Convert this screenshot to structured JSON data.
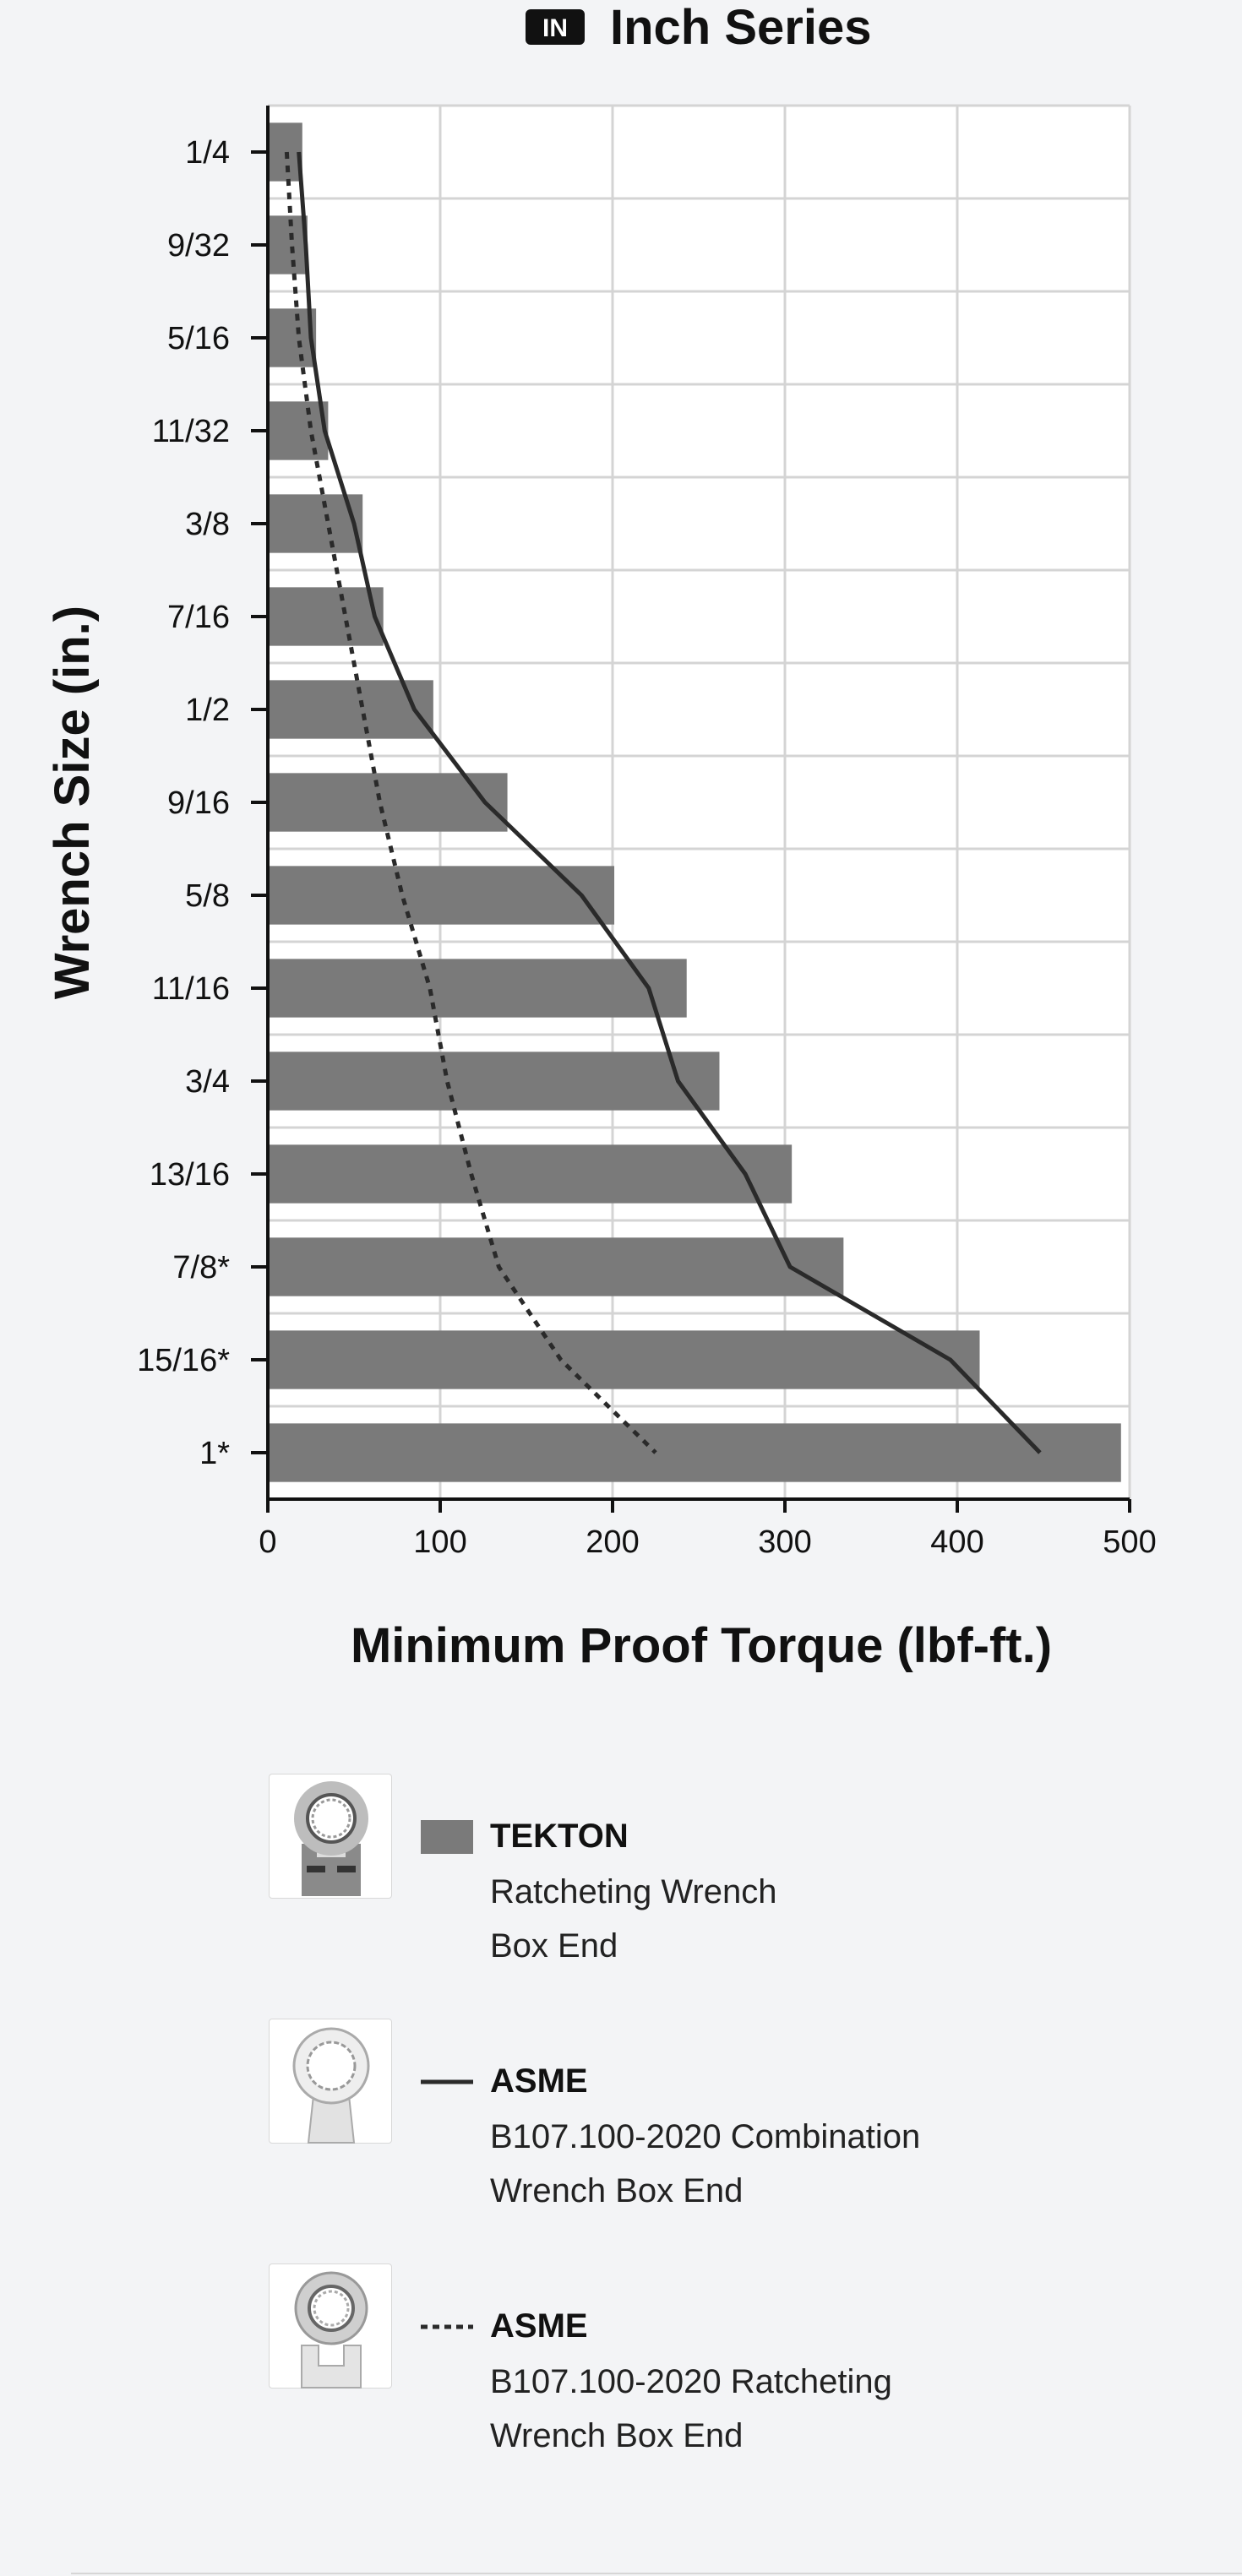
{
  "header": {
    "badge": "IN",
    "title": "Inch Series"
  },
  "chart_data": {
    "type": "bar",
    "orientation": "horizontal",
    "title": "Inch Series",
    "xlabel": "Minimum Proof Torque (lbf-ft.)",
    "ylabel": "Wrench Size (in.)",
    "xlim": [
      0,
      500
    ],
    "xticks": [
      0,
      100,
      200,
      300,
      400,
      500
    ],
    "grid": true,
    "categories": [
      "1/4",
      "9/32",
      "5/16",
      "11/32",
      "3/8",
      "7/16",
      "1/2",
      "9/16",
      "5/8",
      "11/16",
      "3/4",
      "13/16",
      "7/8*",
      "15/16*",
      "1*"
    ],
    "series": [
      {
        "name": "TEKTON",
        "type": "bar",
        "color": "#7a7a7a",
        "values": [
          20,
          23,
          28,
          35,
          55,
          67,
          96,
          139,
          201,
          243,
          262,
          304,
          334,
          413,
          495
        ]
      },
      {
        "name": "ASME B107.100-2020 Combination Wrench Box End",
        "type": "line",
        "style": "solid",
        "color": "#2a2a2a",
        "values": [
          18,
          22,
          25,
          33,
          50,
          62,
          85,
          126,
          182,
          221,
          238,
          277,
          303,
          396,
          448
        ]
      },
      {
        "name": "ASME B107.100-2020 Ratcheting Wrench Box End",
        "type": "line",
        "style": "dashed",
        "color": "#2a2a2a",
        "values": [
          11,
          14,
          18,
          25,
          35,
          45,
          55,
          65,
          78,
          94,
          104,
          118,
          134,
          170,
          225
        ]
      }
    ]
  },
  "legend": [
    {
      "name": "TEKTON",
      "line1": "Ratcheting Wrench",
      "line2": "Box End",
      "key": "bar",
      "thumb_icon": "tekton-ratcheting-wrench-icon"
    },
    {
      "name": "ASME",
      "line1": "B107.100-2020 Combination",
      "line2": "Wrench Box End",
      "key": "solid-line",
      "thumb_icon": "combination-wrench-icon"
    },
    {
      "name": "ASME",
      "line1": "B107.100-2020 Ratcheting",
      "line2": "Wrench Box End",
      "key": "dashed-line",
      "thumb_icon": "ratcheting-wrench-icon"
    }
  ],
  "colors": {
    "bar": "#7a7a7a",
    "line": "#2a2a2a",
    "grid": "#d4d4d4",
    "background": "#f3f4f6",
    "plot": "#ffffff"
  }
}
